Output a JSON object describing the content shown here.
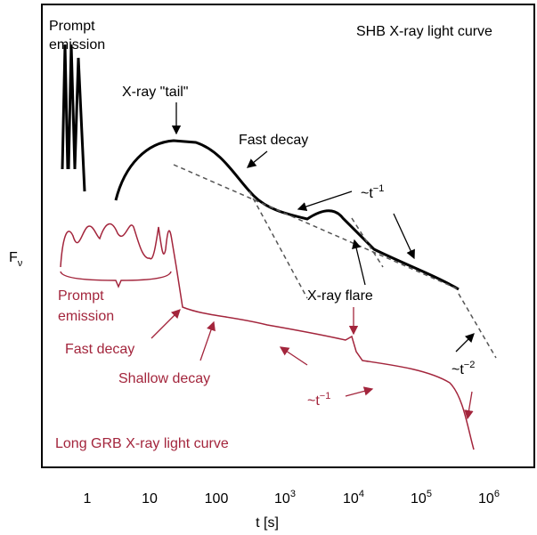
{
  "diagram": {
    "y_axis_label": {
      "base": "F",
      "sub": "ν"
    },
    "x_axis_label": "t [s]",
    "x_ticks": [
      {
        "base": "1"
      },
      {
        "base": "10"
      },
      {
        "base": "100"
      },
      {
        "base": "10",
        "exp": "3"
      },
      {
        "base": "10",
        "exp": "4"
      },
      {
        "base": "10",
        "exp": "5"
      },
      {
        "base": "10",
        "exp": "6"
      }
    ],
    "annotations": {
      "shb_prompt": [
        "Prompt",
        "emission"
      ],
      "shb_title": "SHB X-ray light curve",
      "shb_tail": "X-ray \"tail\"",
      "shb_fast_decay": "Fast decay",
      "shb_power_law": {
        "base": "~t",
        "exp": "−1"
      },
      "shb_flare": "X-ray flare",
      "lgrb_prompt": [
        "Prompt",
        "emission"
      ],
      "lgrb_fast_decay": "Fast decay",
      "lgrb_shallow_decay": "Shallow decay",
      "lgrb_power_law": {
        "base": "~t",
        "exp": "−1"
      },
      "late_power_law": {
        "base": "~t",
        "exp": "−2"
      },
      "lgrb_title": "Long GRB X-ray light curve"
    }
  }
}
